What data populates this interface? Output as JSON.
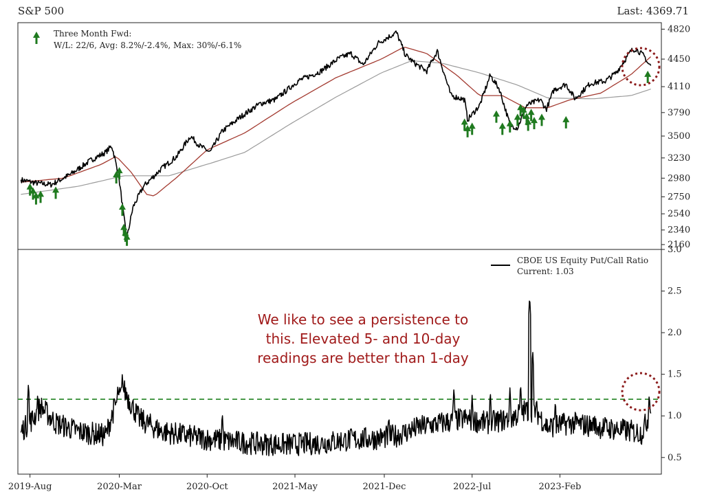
{
  "header": {
    "title": "S&P 500",
    "last": "Last: 4369.71"
  },
  "chart_data": [
    {
      "type": "line",
      "name": "S&P 500 panel",
      "ylim": [
        2100,
        4900
      ],
      "y_ticks": [
        2160,
        2340,
        2540,
        2750,
        2980,
        3230,
        3500,
        3790,
        4110,
        4450,
        4820
      ],
      "legend": {
        "title": "Three Month Fwd:",
        "stats": "W/L: 22/6, Avg: 8.2%/-2.4%, Max: 30%/-6.1%",
        "position": "top-left"
      },
      "price_anchors": [
        [
          2019.52,
          2960
        ],
        [
          2019.62,
          2920
        ],
        [
          2019.72,
          2900
        ],
        [
          2019.85,
          3030
        ],
        [
          2019.98,
          3200
        ],
        [
          2020.08,
          3300
        ],
        [
          2020.12,
          3380
        ],
        [
          2020.14,
          3230
        ],
        [
          2020.17,
          2950
        ],
        [
          2020.2,
          2500
        ],
        [
          2020.22,
          2240
        ],
        [
          2020.26,
          2620
        ],
        [
          2020.33,
          2880
        ],
        [
          2020.45,
          3100
        ],
        [
          2020.55,
          3250
        ],
        [
          2020.64,
          3500
        ],
        [
          2020.7,
          3380
        ],
        [
          2020.77,
          3300
        ],
        [
          2020.85,
          3560
        ],
        [
          2020.98,
          3750
        ],
        [
          2021.1,
          3900
        ],
        [
          2021.2,
          3950
        ],
        [
          2021.35,
          4180
        ],
        [
          2021.5,
          4300
        ],
        [
          2021.62,
          4460
        ],
        [
          2021.7,
          4520
        ],
        [
          2021.78,
          4380
        ],
        [
          2021.88,
          4650
        ],
        [
          2022.0,
          4780
        ],
        [
          2022.06,
          4500
        ],
        [
          2022.12,
          4400
        ],
        [
          2022.2,
          4300
        ],
        [
          2022.27,
          4550
        ],
        [
          2022.36,
          4000
        ],
        [
          2022.45,
          3950
        ],
        [
          2022.47,
          3700
        ],
        [
          2022.55,
          3880
        ],
        [
          2022.62,
          4250
        ],
        [
          2022.68,
          4080
        ],
        [
          2022.75,
          3640
        ],
        [
          2022.8,
          3600
        ],
        [
          2022.86,
          3880
        ],
        [
          2022.95,
          3950
        ],
        [
          2022.99,
          3830
        ],
        [
          2023.04,
          4070
        ],
        [
          2023.12,
          4140
        ],
        [
          2023.18,
          3960
        ],
        [
          2023.28,
          4150
        ],
        [
          2023.38,
          4180
        ],
        [
          2023.45,
          4280
        ],
        [
          2023.55,
          4550
        ],
        [
          2023.58,
          4580
        ],
        [
          2023.64,
          4480
        ],
        [
          2023.66,
          4400
        ],
        [
          2023.68,
          4369.71
        ]
      ],
      "ma_short_anchors": [
        [
          2019.52,
          2930
        ],
        [
          2019.8,
          2980
        ],
        [
          2020.05,
          3150
        ],
        [
          2020.15,
          3250
        ],
        [
          2020.25,
          3050
        ],
        [
          2020.35,
          2780
        ],
        [
          2020.4,
          2760
        ],
        [
          2020.55,
          2990
        ],
        [
          2020.75,
          3330
        ],
        [
          2021.0,
          3540
        ],
        [
          2021.3,
          3900
        ],
        [
          2021.6,
          4220
        ],
        [
          2021.9,
          4450
        ],
        [
          2022.05,
          4600
        ],
        [
          2022.2,
          4520
        ],
        [
          2022.4,
          4250
        ],
        [
          2022.55,
          4000
        ],
        [
          2022.7,
          4000
        ],
        [
          2022.85,
          3850
        ],
        [
          2023.0,
          3850
        ],
        [
          2023.15,
          3950
        ],
        [
          2023.35,
          4030
        ],
        [
          2023.55,
          4260
        ],
        [
          2023.68,
          4480
        ]
      ],
      "ma_long_anchors": [
        [
          2019.52,
          2780
        ],
        [
          2019.9,
          2880
        ],
        [
          2020.2,
          3010
        ],
        [
          2020.5,
          3010
        ],
        [
          2020.8,
          3180
        ],
        [
          2021.0,
          3300
        ],
        [
          2021.3,
          3650
        ],
        [
          2021.6,
          3980
        ],
        [
          2021.9,
          4280
        ],
        [
          2022.1,
          4430
        ],
        [
          2022.3,
          4400
        ],
        [
          2022.55,
          4280
        ],
        [
          2022.8,
          4130
        ],
        [
          2023.0,
          3970
        ],
        [
          2023.3,
          3960
        ],
        [
          2023.55,
          4000
        ],
        [
          2023.68,
          4080
        ]
      ],
      "signals": [
        [
          2019.58,
          2900
        ],
        [
          2019.6,
          2850
        ],
        [
          2019.62,
          2790
        ],
        [
          2019.65,
          2810
        ],
        [
          2019.75,
          2860
        ],
        [
          2020.15,
          3050
        ],
        [
          2020.17,
          3100
        ],
        [
          2020.19,
          2650
        ],
        [
          2020.2,
          2400
        ],
        [
          2020.21,
          2330
        ],
        [
          2020.22,
          2280
        ],
        [
          2022.45,
          3700
        ],
        [
          2022.47,
          3620
        ],
        [
          2022.5,
          3650
        ],
        [
          2022.66,
          3800
        ],
        [
          2022.7,
          3650
        ],
        [
          2022.75,
          3680
        ],
        [
          2022.8,
          3760
        ],
        [
          2022.82,
          3880
        ],
        [
          2022.84,
          3850
        ],
        [
          2022.86,
          3770
        ],
        [
          2022.87,
          3700
        ],
        [
          2022.89,
          3820
        ],
        [
          2022.91,
          3720
        ],
        [
          2022.96,
          3760
        ],
        [
          2023.12,
          3730
        ],
        [
          2023.66,
          4290
        ]
      ]
    },
    {
      "type": "line",
      "name": "CBOE US Equity Put/Call Ratio panel",
      "ylim": [
        0.3,
        3.0
      ],
      "y_ticks": [
        0.5,
        1.0,
        1.5,
        2.0,
        2.5,
        3.0
      ],
      "x_ticks": [
        "2019-Aug",
        "2020-Mar",
        "2020-Oct",
        "2021-May",
        "2021-Dec",
        "2022-Jul",
        "2023-Feb"
      ],
      "legend": {
        "series": "CBOE US Equity Put/Call Ratio",
        "current": "Current: 1.03",
        "position": "top-right"
      },
      "threshold": 1.2,
      "base_anchors": [
        [
          2019.52,
          0.8
        ],
        [
          2019.6,
          0.95
        ],
        [
          2019.65,
          1.1
        ],
        [
          2019.75,
          0.9
        ],
        [
          2019.9,
          0.8
        ],
        [
          2020.08,
          0.75
        ],
        [
          2020.14,
          1.1
        ],
        [
          2020.2,
          1.3
        ],
        [
          2020.3,
          0.95
        ],
        [
          2020.45,
          0.8
        ],
        [
          2020.7,
          0.72
        ],
        [
          2020.9,
          0.68
        ],
        [
          2021.1,
          0.65
        ],
        [
          2021.3,
          0.64
        ],
        [
          2021.5,
          0.66
        ],
        [
          2021.7,
          0.7
        ],
        [
          2021.9,
          0.72
        ],
        [
          2022.0,
          0.75
        ],
        [
          2022.15,
          0.85
        ],
        [
          2022.3,
          0.9
        ],
        [
          2022.45,
          0.95
        ],
        [
          2022.6,
          0.9
        ],
        [
          2022.75,
          0.95
        ],
        [
          2022.85,
          1.05
        ],
        [
          2022.92,
          1.05
        ],
        [
          2023.0,
          0.85
        ],
        [
          2023.15,
          0.9
        ],
        [
          2023.35,
          0.85
        ],
        [
          2023.55,
          0.8
        ],
        [
          2023.62,
          0.78
        ],
        [
          2023.66,
          0.95
        ],
        [
          2023.68,
          1.03
        ]
      ],
      "spikes": [
        [
          2019.57,
          1.4
        ],
        [
          2019.63,
          1.25
        ],
        [
          2020.16,
          1.38
        ],
        [
          2020.19,
          1.52
        ],
        [
          2020.22,
          1.3
        ],
        [
          2020.85,
          1.05
        ],
        [
          2021.95,
          1.02
        ],
        [
          2022.38,
          1.35
        ],
        [
          2022.5,
          1.25
        ],
        [
          2022.62,
          1.3
        ],
        [
          2022.75,
          1.35
        ],
        [
          2022.82,
          1.4
        ],
        [
          2022.88,
          2.45
        ],
        [
          2022.9,
          1.8
        ],
        [
          2023.05,
          1.2
        ],
        [
          2023.3,
          1.05
        ],
        [
          2023.67,
          1.28
        ]
      ],
      "annotation": [
        "We like to see a persistence to",
        "this.  Elevated 5- and 10-day",
        "readings are better than 1-day"
      ]
    }
  ],
  "colors": {
    "price": "#000000",
    "ma_short": "#a33a30",
    "ma_long": "#9a9a9a",
    "signal": "#1f7a1f",
    "threshold": "#2e8b2e",
    "annotation": "#a01a1a",
    "circle": "#8b1a1a"
  }
}
